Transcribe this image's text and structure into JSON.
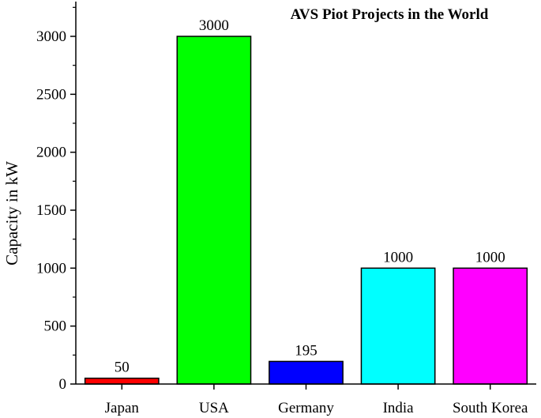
{
  "chart_data": {
    "type": "bar",
    "title": "AVS Piot Projects in the World",
    "xlabel": "",
    "ylabel": "Capacity in kW",
    "categories": [
      "Japan",
      "USA",
      "Germany",
      "India",
      "South Korea"
    ],
    "values": [
      50,
      3000,
      195,
      1000,
      1000
    ],
    "data_labels": [
      "50",
      "3000",
      "195",
      "1000",
      "1000"
    ],
    "colors": [
      "#ff0000",
      "#00ff00",
      "#0000ff",
      "#00ffff",
      "#ff00ff"
    ],
    "ylim": [
      0,
      3300
    ],
    "yticks": [
      0,
      500,
      1000,
      1500,
      2000,
      2500,
      3000
    ],
    "ytick_labels": [
      "0",
      "500",
      "1000",
      "1500",
      "2000",
      "2500",
      "3000"
    ],
    "grid": false,
    "legend": "none"
  }
}
